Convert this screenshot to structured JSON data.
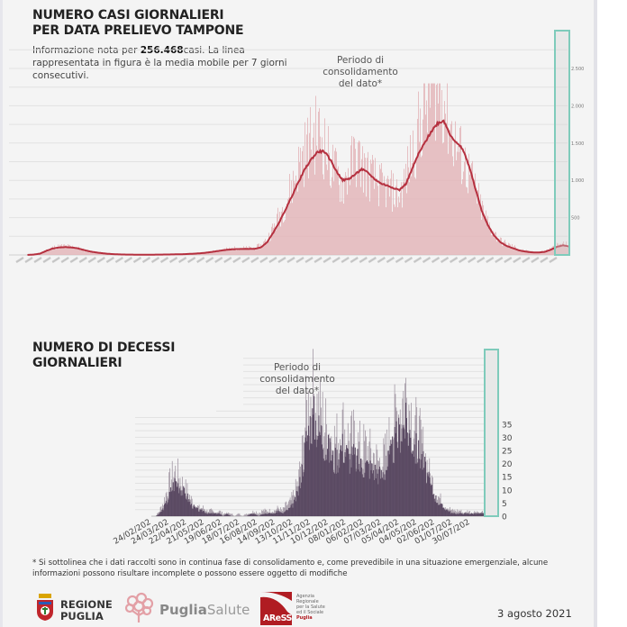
{
  "panel1": {
    "title_line1": "NUMERO CASI GIORNALIERI",
    "title_line2": "PER DATA PRELIEVO TAMPONE",
    "subtitle_prefix": "Informazione nota per ",
    "subtitle_count": "256.468",
    "subtitle_suffix": "casi. La linea rappresentata in figura è la media mobile per 7 giorni consecutivi.",
    "annotation_line1": "Periodo di",
    "annotation_line2": "consolidamento",
    "annotation_line3": "del dato*"
  },
  "panel2": {
    "title_line1": "NUMERO DI DECESSI",
    "title_line2": "GIORNALIERI",
    "annotation_line1": "Periodo di",
    "annotation_line2": "consolidamento",
    "annotation_line3": "del dato*"
  },
  "footnote": "* Si sottolinea che i dati raccolti sono in continua fase di consolidamento e, come prevedibile in una situazione emergenziale, alcune informazioni possono risultare incomplete o possono essere oggetto di modifiche",
  "logos": {
    "regione_line1": "REGIONE",
    "regione_line2": "PUGLIA",
    "puglia_bold": "Puglia",
    "puglia_light": "Salute",
    "aress_label": "AReSS",
    "aress_side_1": "Agenzia",
    "aress_side_2": "Regionale",
    "aress_side_3": "per la Salute",
    "aress_side_4": "ed il Sociale",
    "aress_side_5": "Puglia"
  },
  "date": "3 agosto 2021",
  "colors": {
    "cases_bar": "#e3b3b7",
    "cases_line": "#b5303f",
    "deaths_bar": "#5b4a63",
    "deaths_spike": "#9d929f",
    "consolidation_box": "#7fcbbb"
  },
  "chart_data": [
    {
      "type": "bar",
      "title": "NUMERO CASI GIORNALIERI PER DATA PRELIEVO TAMPONE",
      "xlabel": "",
      "ylabel": "",
      "ylim": [
        0,
        2500
      ],
      "yticks": [
        0,
        500,
        1000,
        1500,
        2000,
        2500
      ],
      "ytick_labels": [
        "",
        "500",
        "1.000",
        "1.500",
        "2.000",
        "2.500"
      ],
      "y_axis_side": "right",
      "grid": true,
      "x_period": "2020-02 to 2021-08 (daily)",
      "series": [
        {
          "name": "daily cases (approx. weekly sampled)",
          "kind": "bar",
          "values": [
            0,
            5,
            20,
            60,
            95,
            110,
            115,
            105,
            90,
            60,
            40,
            30,
            20,
            12,
            8,
            5,
            4,
            3,
            3,
            3,
            4,
            4,
            5,
            6,
            8,
            10,
            15,
            20,
            28,
            40,
            55,
            70,
            80,
            85,
            90,
            88,
            92,
            120,
            200,
            350,
            520,
            700,
            900,
            1150,
            1350,
            1500,
            1600,
            1450,
            1200,
            1050,
            900,
            1100,
            1280,
            1180,
            1050,
            980,
            900,
            850,
            820,
            760,
            1000,
            1300,
            1600,
            1900,
            2150,
            2220,
            2050,
            1700,
            1400,
            1250,
            1050,
            850,
            600,
            420,
            280,
            180,
            140,
            110,
            70,
            50,
            40,
            35,
            50,
            80,
            120,
            140,
            120
          ]
        },
        {
          "name": "media mobile 7 giorni",
          "kind": "line",
          "values": [
            0,
            5,
            18,
            55,
            85,
            100,
            105,
            100,
            88,
            65,
            45,
            32,
            22,
            14,
            9,
            6,
            5,
            4,
            4,
            4,
            4,
            5,
            6,
            7,
            9,
            11,
            15,
            20,
            27,
            37,
            50,
            62,
            72,
            78,
            80,
            80,
            82,
            100,
            170,
            300,
            450,
            620,
            800,
            980,
            1150,
            1280,
            1380,
            1390,
            1280,
            1120,
            1000,
            1020,
            1080,
            1150,
            1100,
            1020,
            960,
            930,
            900,
            870,
            950,
            1150,
            1350,
            1500,
            1650,
            1760,
            1800,
            1620,
            1500,
            1420,
            1200,
            900,
            600,
            400,
            260,
            170,
            120,
            90,
            60,
            45,
            35,
            33,
            40,
            70,
            110,
            130,
            110
          ]
        }
      ],
      "annotation": "Periodo di consolidamento del dato*",
      "highlight_region": "last ~14 days (consolidation period)"
    },
    {
      "type": "bar",
      "title": "NUMERO DI DECESSI GIORNALIERI",
      "xlabel": "",
      "ylabel": "",
      "ylim": [
        0,
        40
      ],
      "yticks": [
        0,
        5,
        10,
        15,
        20,
        25,
        30,
        35
      ],
      "ytick_labels": [
        "0",
        "5",
        "10",
        "15",
        "20",
        "25",
        "30",
        "35"
      ],
      "y_axis_side": "right",
      "grid": true,
      "x_tick_labels": [
        "24/02/202",
        "24/03/202",
        "22/04/202",
        "21/05/202",
        "19/06/202",
        "18/07/202",
        "16/08/202",
        "14/09/202",
        "13/10/202",
        "11/11/202",
        "10/12/202",
        "08/01/202",
        "06/02/202",
        "07/03/202",
        "05/04/202",
        "04/05/202",
        "02/06/202",
        "01/07/202",
        "30/07/202"
      ],
      "series": [
        {
          "name": "decessi giornalieri (approx. weekly sampled)",
          "kind": "bar",
          "values": [
            0,
            0,
            1,
            3,
            6,
            10,
            13,
            11,
            9,
            7,
            4,
            3,
            2,
            2,
            1,
            1,
            1,
            1,
            0,
            1,
            0,
            0,
            0,
            0,
            0,
            1,
            1,
            0,
            1,
            1,
            1,
            1,
            2,
            1,
            2,
            3,
            5,
            9,
            17,
            28,
            34,
            36,
            32,
            30,
            25,
            24,
            20,
            22,
            26,
            24,
            21,
            22,
            20,
            18,
            19,
            18,
            17,
            16,
            15,
            17,
            21,
            25,
            29,
            32,
            34,
            31,
            27,
            24,
            22,
            18,
            13,
            9,
            6,
            4,
            3,
            2,
            1,
            1,
            1,
            1,
            1,
            1,
            1,
            1,
            1
          ]
        },
        {
          "name": "peak spikes (lighter)",
          "kind": "bar",
          "values": [
            0,
            0,
            2,
            5,
            10,
            14,
            16,
            14,
            11,
            9,
            6,
            4,
            3,
            3,
            2,
            2,
            1,
            2,
            1,
            1,
            1,
            0,
            1,
            0,
            1,
            1,
            2,
            1,
            2,
            2,
            2,
            2,
            3,
            2,
            4,
            5,
            8,
            12,
            22,
            36,
            42,
            44,
            38,
            36,
            32,
            30,
            27,
            28,
            33,
            30,
            27,
            28,
            26,
            24,
            25,
            23,
            22,
            20,
            19,
            22,
            27,
            32,
            37,
            40,
            45,
            41,
            35,
            30,
            27,
            22,
            16,
            12,
            8,
            6,
            4,
            3,
            2,
            2,
            2,
            1,
            2,
            1,
            2,
            1,
            2
          ]
        }
      ],
      "annotation": "Periodo di consolidamento del dato*",
      "highlight_region": "last ~14 days (consolidation period)"
    }
  ]
}
